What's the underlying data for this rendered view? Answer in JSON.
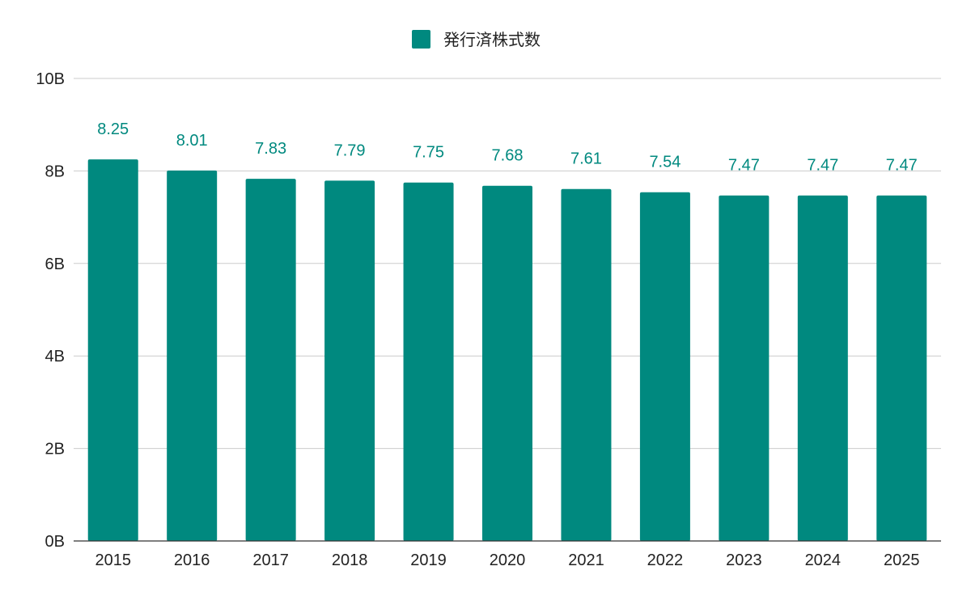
{
  "chart_data": {
    "type": "bar",
    "categories": [
      "2015",
      "2016",
      "2017",
      "2018",
      "2019",
      "2020",
      "2021",
      "2022",
      "2023",
      "2024",
      "2025"
    ],
    "series": [
      {
        "name": "発行済株式数",
        "values": [
          8.25,
          8.01,
          7.83,
          7.79,
          7.75,
          7.68,
          7.61,
          7.54,
          7.47,
          7.47,
          7.47
        ],
        "value_labels": [
          "8.25",
          "8.01",
          "7.83",
          "7.79",
          "7.75",
          "7.68",
          "7.61",
          "7.54",
          "7.47",
          "7.47",
          "7.47"
        ],
        "color": "#00897f"
      }
    ],
    "value_unit": "B",
    "ylim": [
      0,
      10
    ],
    "yticks": [
      0,
      2,
      4,
      6,
      8,
      10
    ],
    "ytick_labels": [
      "0B",
      "2B",
      "4B",
      "6B",
      "8B",
      "10B"
    ],
    "grid": true,
    "legend_position": "top-center",
    "title": "",
    "xlabel": "",
    "ylabel": ""
  }
}
